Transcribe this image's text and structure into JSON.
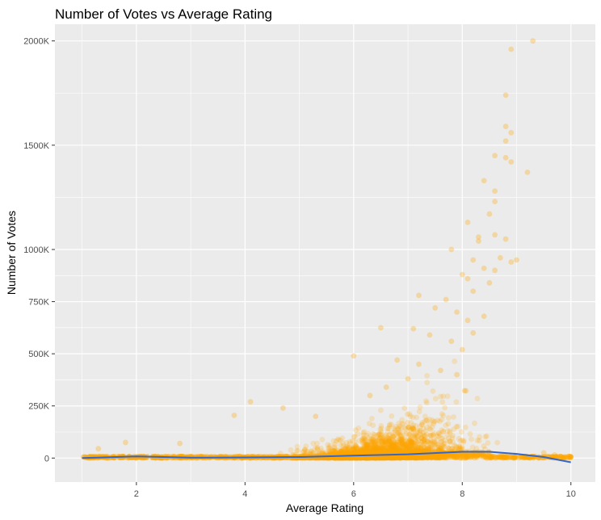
{
  "chart_data": {
    "type": "scatter",
    "title": "Number of Votes vs Average Rating",
    "xlabel": "Average Rating",
    "ylabel": "Number of Votes",
    "xlim": [
      0.5,
      10.45
    ],
    "ylim": [
      -115000,
      2080000
    ],
    "x_ticks": [
      2,
      4,
      6,
      8,
      10
    ],
    "y_ticks": [
      0,
      250000,
      500000,
      750000,
      1000000,
      1500000,
      2000000
    ],
    "y_tick_labels": [
      "0",
      "250K",
      "500K",
      "750K",
      "1000K",
      "1500K",
      "2000K"
    ],
    "grid": true,
    "legend": "none",
    "colors": {
      "points": "#ffa500",
      "trend": "#3366cc",
      "panel": "#ebebeb",
      "grid": "#ffffff"
    },
    "series": [
      {
        "kind": "scatter",
        "points": [
          [
            9.3,
            2000000
          ],
          [
            8.9,
            1960000
          ],
          [
            8.8,
            1740000
          ],
          [
            8.8,
            1590000
          ],
          [
            8.8,
            1520000
          ],
          [
            8.9,
            1560000
          ],
          [
            8.6,
            1450000
          ],
          [
            8.8,
            1440000
          ],
          [
            8.9,
            1420000
          ],
          [
            9.2,
            1370000
          ],
          [
            8.4,
            1330000
          ],
          [
            8.6,
            1280000
          ],
          [
            8.6,
            1230000
          ],
          [
            8.5,
            1170000
          ],
          [
            8.1,
            1130000
          ],
          [
            8.3,
            1060000
          ],
          [
            8.3,
            1040000
          ],
          [
            8.6,
            1070000
          ],
          [
            8.8,
            1050000
          ],
          [
            7.8,
            1000000
          ],
          [
            8.2,
            950000
          ],
          [
            8.7,
            960000
          ],
          [
            8.9,
            940000
          ],
          [
            9.0,
            950000
          ],
          [
            8.4,
            910000
          ],
          [
            8.6,
            900000
          ],
          [
            8.0,
            880000
          ],
          [
            8.1,
            860000
          ],
          [
            8.5,
            840000
          ],
          [
            8.2,
            800000
          ],
          [
            7.2,
            780000
          ],
          [
            7.7,
            760000
          ],
          [
            7.5,
            720000
          ],
          [
            7.9,
            700000
          ],
          [
            8.4,
            680000
          ],
          [
            8.1,
            660000
          ],
          [
            6.5,
            625000
          ],
          [
            7.1,
            620000
          ],
          [
            7.4,
            590000
          ],
          [
            7.8,
            560000
          ],
          [
            6.0,
            490000
          ],
          [
            6.8,
            470000
          ],
          [
            7.2,
            450000
          ],
          [
            4.1,
            270000
          ],
          [
            3.8,
            205000
          ],
          [
            4.7,
            240000
          ],
          [
            5.3,
            200000
          ],
          [
            2.8,
            70000
          ],
          [
            1.8,
            75000
          ],
          [
            1.3,
            45000
          ],
          [
            9.7,
            15000
          ],
          [
            10.0,
            5000
          ],
          [
            9.5,
            25000
          ],
          [
            6.3,
            300000
          ],
          [
            6.6,
            340000
          ],
          [
            7.0,
            380000
          ],
          [
            7.6,
            420000
          ],
          [
            8.0,
            520000
          ],
          [
            8.2,
            600000
          ],
          [
            7.9,
            400000
          ]
        ]
      },
      {
        "kind": "trend",
        "points": [
          [
            1.0,
            0
          ],
          [
            2.0,
            8000
          ],
          [
            3.0,
            2000
          ],
          [
            4.0,
            3000
          ],
          [
            5.0,
            5000
          ],
          [
            6.0,
            12000
          ],
          [
            7.0,
            18000
          ],
          [
            8.0,
            30000
          ],
          [
            8.5,
            30000
          ],
          [
            9.0,
            20000
          ],
          [
            9.5,
            5000
          ],
          [
            10.0,
            -20000
          ]
        ]
      }
    ]
  }
}
